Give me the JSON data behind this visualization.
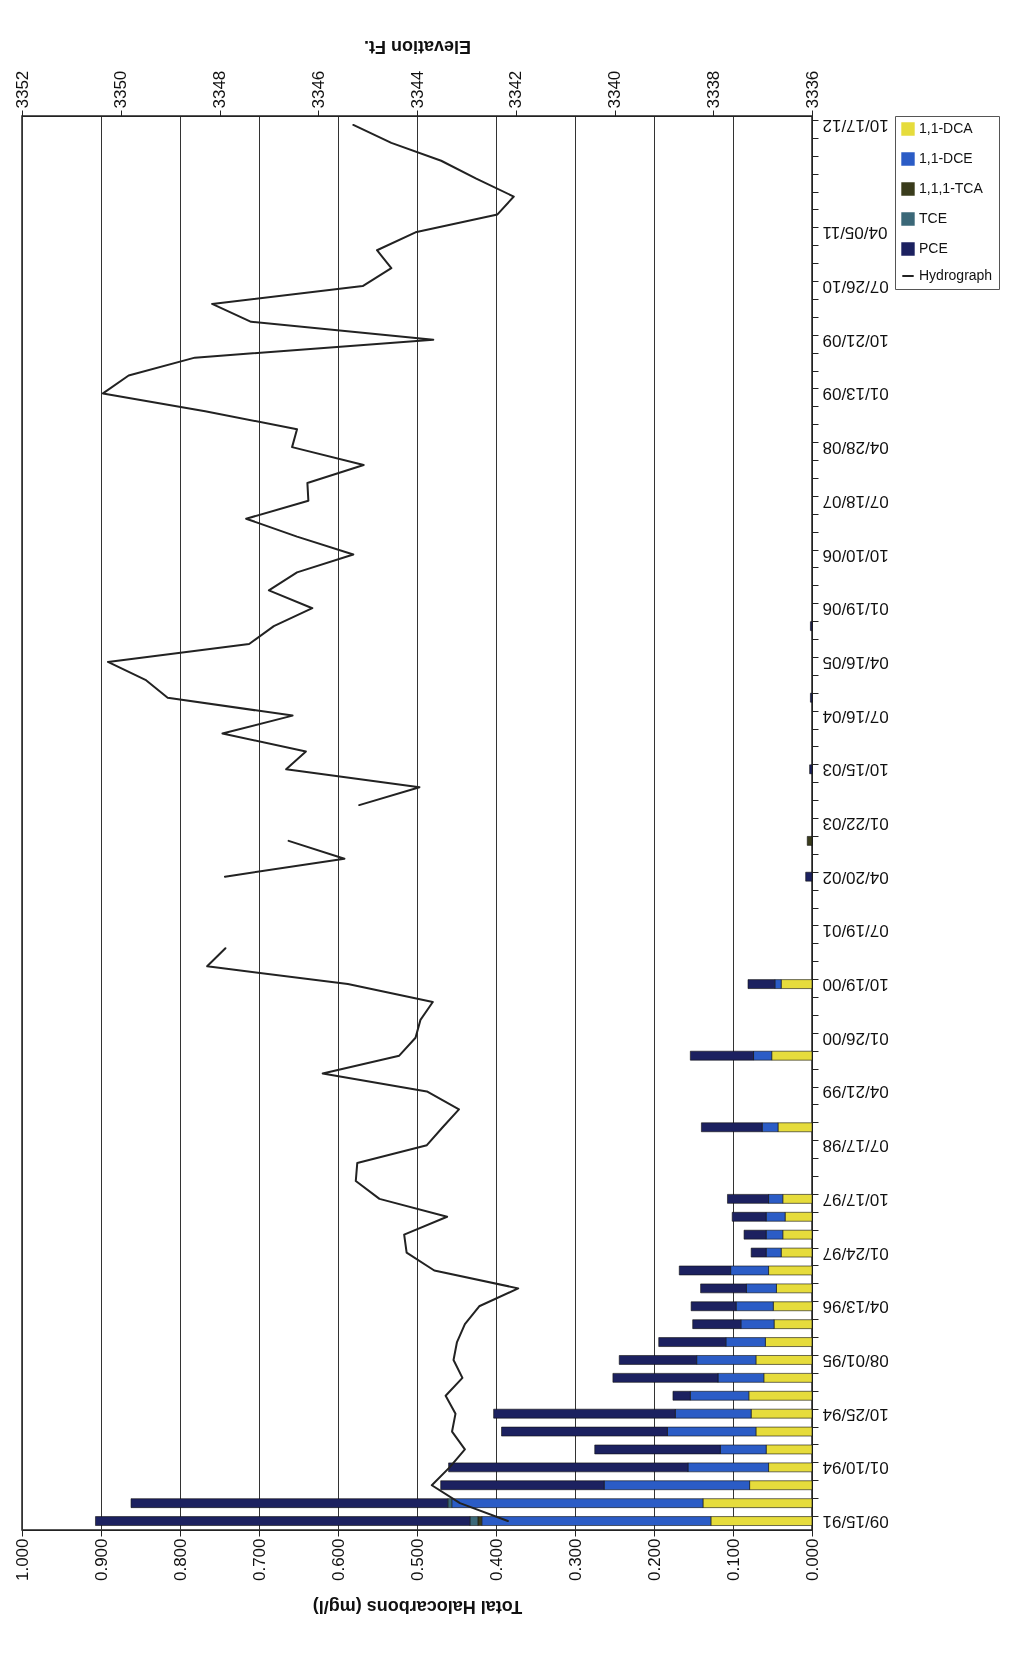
{
  "chart_data": {
    "type": "bar",
    "stacked": true,
    "orientation": "horizontal",
    "xlabel": "Total Halocarbons (mg/l)",
    "x2label": "Elevation Ft.",
    "categories": [
      "10/17/12",
      null,
      null,
      null,
      null,
      null,
      "04/05/11",
      null,
      null,
      "07/26/10",
      null,
      null,
      "10/21/09",
      null,
      null,
      "01/13/09",
      null,
      null,
      "04/28/08",
      null,
      null,
      "07/18/07",
      null,
      null,
      "10/10/06",
      null,
      null,
      "01/19/06",
      null,
      null,
      "04/16/05",
      null,
      null,
      "07/16/04",
      null,
      null,
      "10/15/03",
      null,
      null,
      "01/22/03",
      null,
      null,
      "04/20/02",
      null,
      null,
      "07/19/01",
      null,
      null,
      "10/19/00",
      null,
      null,
      "01/26/00",
      null,
      null,
      "04/21/99",
      null,
      null,
      "07/17/98",
      null,
      null,
      "10/17/97",
      null,
      null,
      "01/24/97",
      null,
      null,
      "04/13/96",
      null,
      null,
      "08/01/95",
      null,
      null,
      "10/25/94",
      null,
      null,
      "01/10/94",
      null,
      null,
      "09/15/91"
    ],
    "xlim": [
      1,
      0
    ],
    "xticks": [
      {
        "value": 1,
        "label": "1.000"
      },
      {
        "value": 0.9,
        "label": "0.900"
      },
      {
        "value": 0.8,
        "label": "0.800"
      },
      {
        "value": 0.7,
        "label": "0.700"
      },
      {
        "value": 0.6,
        "label": "0.600"
      },
      {
        "value": 0.5,
        "label": "0.500"
      },
      {
        "value": 0.4,
        "label": "0.400"
      },
      {
        "value": 0.3,
        "label": "0.300"
      },
      {
        "value": 0.2,
        "label": "0.200"
      },
      {
        "value": 0.1,
        "label": "0.100"
      },
      {
        "value": 0,
        "label": "0.000"
      }
    ],
    "x2lim": [
      3352,
      3336
    ],
    "x2ticks": [
      3352,
      3350,
      3348,
      3346,
      3344,
      3342,
      3340,
      3338,
      3336
    ],
    "grid": "x",
    "legend": "right",
    "series": [
      {
        "name": "1,1-DCA",
        "type": "bar",
        "color": "#e6dc3c",
        "values": [
          null,
          null,
          null,
          null,
          null,
          null,
          null,
          null,
          null,
          null,
          null,
          null,
          null,
          null,
          null,
          null,
          null,
          null,
          null,
          null,
          null,
          null,
          null,
          null,
          null,
          null,
          null,
          null,
          null,
          null,
          null,
          null,
          null,
          null,
          null,
          null,
          null,
          null,
          null,
          null,
          null,
          null,
          null,
          null,
          null,
          null,
          null,
          null,
          0.039,
          null,
          null,
          null,
          0.051,
          null,
          null,
          null,
          0.043,
          null,
          null,
          null,
          0.037,
          0.034,
          0.037,
          0.039,
          0.055,
          0.045,
          0.049,
          0.048,
          0.059,
          0.071,
          0.061,
          0.08,
          0.077,
          0.071,
          0.058,
          0.055,
          0.079,
          0.138,
          0.128
        ]
      },
      {
        "name": "1,1-DCE",
        "type": "bar",
        "color": "#2b5cc6",
        "values": [
          null,
          null,
          null,
          null,
          null,
          null,
          null,
          null,
          null,
          null,
          null,
          null,
          null,
          null,
          null,
          null,
          null,
          null,
          null,
          null,
          null,
          null,
          null,
          null,
          null,
          null,
          null,
          null,
          null,
          null,
          null,
          null,
          null,
          null,
          null,
          null,
          null,
          null,
          null,
          null,
          null,
          null,
          null,
          null,
          null,
          null,
          null,
          null,
          0.008,
          null,
          null,
          null,
          0.023,
          null,
          null,
          null,
          0.02,
          null,
          null,
          null,
          0.018,
          0.024,
          0.021,
          0.019,
          0.048,
          0.038,
          0.047,
          0.042,
          0.05,
          0.075,
          0.058,
          0.074,
          0.096,
          0.112,
          0.058,
          0.102,
          0.184,
          0.318,
          0.29
        ]
      },
      {
        "name": "1,1,1-TCA",
        "type": "bar",
        "color": "#3a3c1c",
        "values": [
          null,
          null,
          null,
          null,
          null,
          null,
          null,
          null,
          null,
          null,
          null,
          null,
          null,
          null,
          null,
          null,
          null,
          null,
          null,
          null,
          null,
          null,
          null,
          null,
          null,
          null,
          null,
          null,
          null,
          null,
          null,
          null,
          null,
          null,
          null,
          null,
          null,
          null,
          null,
          null,
          0.006,
          null,
          null,
          null,
          null,
          null,
          null,
          null,
          null,
          null,
          null,
          null,
          null,
          null,
          null,
          null,
          null,
          null,
          null,
          null,
          null,
          null,
          null,
          null,
          null,
          null,
          null,
          null,
          null,
          null,
          null,
          null,
          null,
          null,
          null,
          null,
          null,
          null,
          0.005
        ]
      },
      {
        "name": "TCE",
        "type": "bar",
        "color": "#3b6878",
        "values": [
          null,
          null,
          null,
          null,
          null,
          null,
          null,
          null,
          null,
          null,
          null,
          null,
          null,
          null,
          null,
          null,
          null,
          null,
          null,
          null,
          null,
          null,
          null,
          null,
          null,
          null,
          null,
          null,
          null,
          null,
          null,
          null,
          null,
          null,
          null,
          null,
          null,
          null,
          null,
          null,
          null,
          null,
          null,
          null,
          null,
          null,
          null,
          null,
          null,
          null,
          null,
          null,
          null,
          null,
          null,
          null,
          null,
          null,
          null,
          null,
          null,
          null,
          null,
          null,
          null,
          null,
          null,
          null,
          null,
          null,
          null,
          null,
          null,
          null,
          null,
          null,
          null,
          0.005,
          0.01
        ]
      },
      {
        "name": "PCE",
        "type": "bar",
        "color": "#1c2160",
        "values": [
          null,
          null,
          null,
          null,
          null,
          null,
          null,
          null,
          null,
          null,
          null,
          null,
          null,
          null,
          null,
          null,
          null,
          null,
          null,
          null,
          null,
          null,
          null,
          null,
          null,
          null,
          null,
          null,
          0.002,
          null,
          null,
          null,
          0.002,
          null,
          null,
          null,
          0.003,
          null,
          null,
          null,
          null,
          null,
          0.008,
          null,
          null,
          null,
          null,
          null,
          0.034,
          null,
          null,
          null,
          0.08,
          null,
          null,
          null,
          0.077,
          null,
          null,
          null,
          0.052,
          0.043,
          0.028,
          0.019,
          0.065,
          0.058,
          0.057,
          0.061,
          0.085,
          0.098,
          0.133,
          0.022,
          0.23,
          0.21,
          0.159,
          0.303,
          0.207,
          0.401,
          0.474
        ]
      },
      {
        "name": "Hydrograph",
        "type": "line",
        "axis": "x2",
        "color": "#222222",
        "values": [
          3345.29,
          3344.52,
          3343.51,
          3342.8,
          3342.04,
          3342.37,
          3344.03,
          3344.81,
          3344.52,
          3345.1,
          3348.15,
          3347.36,
          3343.67,
          3348.5,
          3349.84,
          3350.36,
          3348.29,
          3346.43,
          3346.53,
          3345.08,
          3346.22,
          3346.2,
          3347.46,
          3346.43,
          3345.29,
          3346.43,
          3347.0,
          3346.12,
          3346.9,
          3347.4,
          3350.26,
          3349.5,
          3349.05,
          3346.52,
          3347.94,
          3346.25,
          3346.65,
          3343.95,
          3345.17,
          null,
          3346.6,
          3345.47,
          3347.89,
          null,
          null,
          null,
          3347.88,
          3348.25,
          3345.4,
          3343.68,
          3343.93,
          3344.03,
          3344.36,
          3345.91,
          3343.8,
          3343.15,
          3343.48,
          3343.8,
          3345.21,
          3345.24,
          3344.76,
          3343.39,
          3344.26,
          3344.21,
          3343.65,
          3341.95,
          3342.74,
          3343.03,
          3343.19,
          3343.26,
          3343.08,
          3343.42,
          3343.22,
          3343.29,
          3343.03,
          3343.34,
          3343.7,
          3343.13,
          3342.16
        ]
      }
    ]
  }
}
